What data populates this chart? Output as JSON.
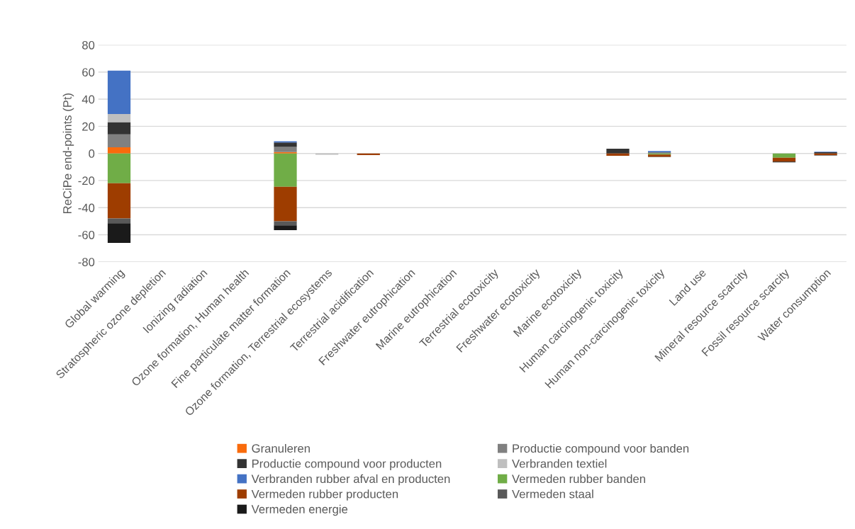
{
  "chart_data": {
    "type": "bar",
    "stacked": true,
    "ylabel": "ReCiPe end-points (Pt)",
    "categories": [
      "Global warming",
      "Stratospheric ozone depletion",
      "Ionizing radiation",
      "Ozone formation, Human health",
      "Fine particulate matter formation",
      "Ozone formation, Terrestrial ecosystems",
      "Terrestrial acidification",
      "Freshwater eutrophication",
      "Marine eutrophication",
      "Terrestrial ecotoxicity",
      "Freshwater ecotoxicity",
      "Marine ecotoxicity",
      "Human carcinogenic toxicity",
      "Human non-carcinogenic toxicity",
      "Land use",
      "Mineral resource scarcity",
      "Fossil resource scarcity",
      "Water consumption"
    ],
    "series": [
      {
        "name": "Granuleren",
        "color": "#f96b0c",
        "values": [
          4.5,
          0,
          0,
          0,
          1,
          0,
          0,
          0,
          0,
          0,
          0,
          0,
          0,
          0,
          0,
          0,
          0,
          0
        ]
      },
      {
        "name": "Productie compound voor banden",
        "color": "#808080",
        "values": [
          9.5,
          0,
          0,
          0,
          3.8,
          0,
          0,
          0,
          0,
          0,
          0,
          0,
          0,
          0.8,
          0,
          0,
          0,
          0
        ]
      },
      {
        "name": "Productie compound voor producten",
        "color": "#333333",
        "values": [
          9,
          0,
          0,
          0,
          3.2,
          0,
          0,
          0,
          0,
          0,
          0,
          0,
          3.5,
          0,
          0,
          0,
          0,
          0.8
        ]
      },
      {
        "name": "Verbranden textiel",
        "color": "#bfbfbf",
        "values": [
          6,
          0,
          0,
          0,
          null,
          -1,
          0,
          0,
          0,
          0,
          0,
          0,
          0,
          0,
          0,
          0,
          null,
          0
        ]
      },
      {
        "name": "Verbranden rubber afval en producten",
        "color": "#4472c4",
        "values": [
          32,
          0,
          0,
          0,
          0.9,
          0,
          0,
          0,
          0,
          0,
          0,
          0,
          0,
          1,
          0,
          0,
          0,
          0.5
        ]
      },
      {
        "name": "Vermeden rubber banden",
        "color": "#70ad47",
        "values": [
          -22,
          0,
          0,
          0,
          -24.6,
          0,
          0,
          0,
          0,
          0,
          0,
          0,
          0,
          -0.9,
          0,
          0,
          -3.2,
          0
        ]
      },
      {
        "name": "Vermeden rubber producten",
        "color": "#9e3d00",
        "values": [
          -26,
          0,
          0,
          0,
          -25.5,
          0,
          -1.2,
          0,
          0,
          0,
          0,
          0,
          -1.8,
          -1.6,
          0,
          0,
          -2.9,
          -1.2
        ]
      },
      {
        "name": "Vermeden staal",
        "color": "#595959",
        "values": [
          -3.5,
          0,
          0,
          0,
          -3,
          0,
          0,
          0,
          0,
          0,
          0,
          0,
          0,
          -0.3,
          0,
          0,
          0,
          0
        ]
      },
      {
        "name": "Vermeden energie",
        "color": "#1a1a1a",
        "values": [
          -14.5,
          0,
          0,
          0,
          -3.5,
          0,
          0,
          0,
          0,
          0,
          0,
          0,
          0,
          0,
          0,
          0,
          -0.5,
          -0.3
        ]
      }
    ],
    "ylim": [
      -80,
      80
    ],
    "yticks": [
      -80,
      -60,
      -40,
      -20,
      0,
      20,
      40,
      60,
      80
    ],
    "grid": "y",
    "legend": "bottom"
  }
}
